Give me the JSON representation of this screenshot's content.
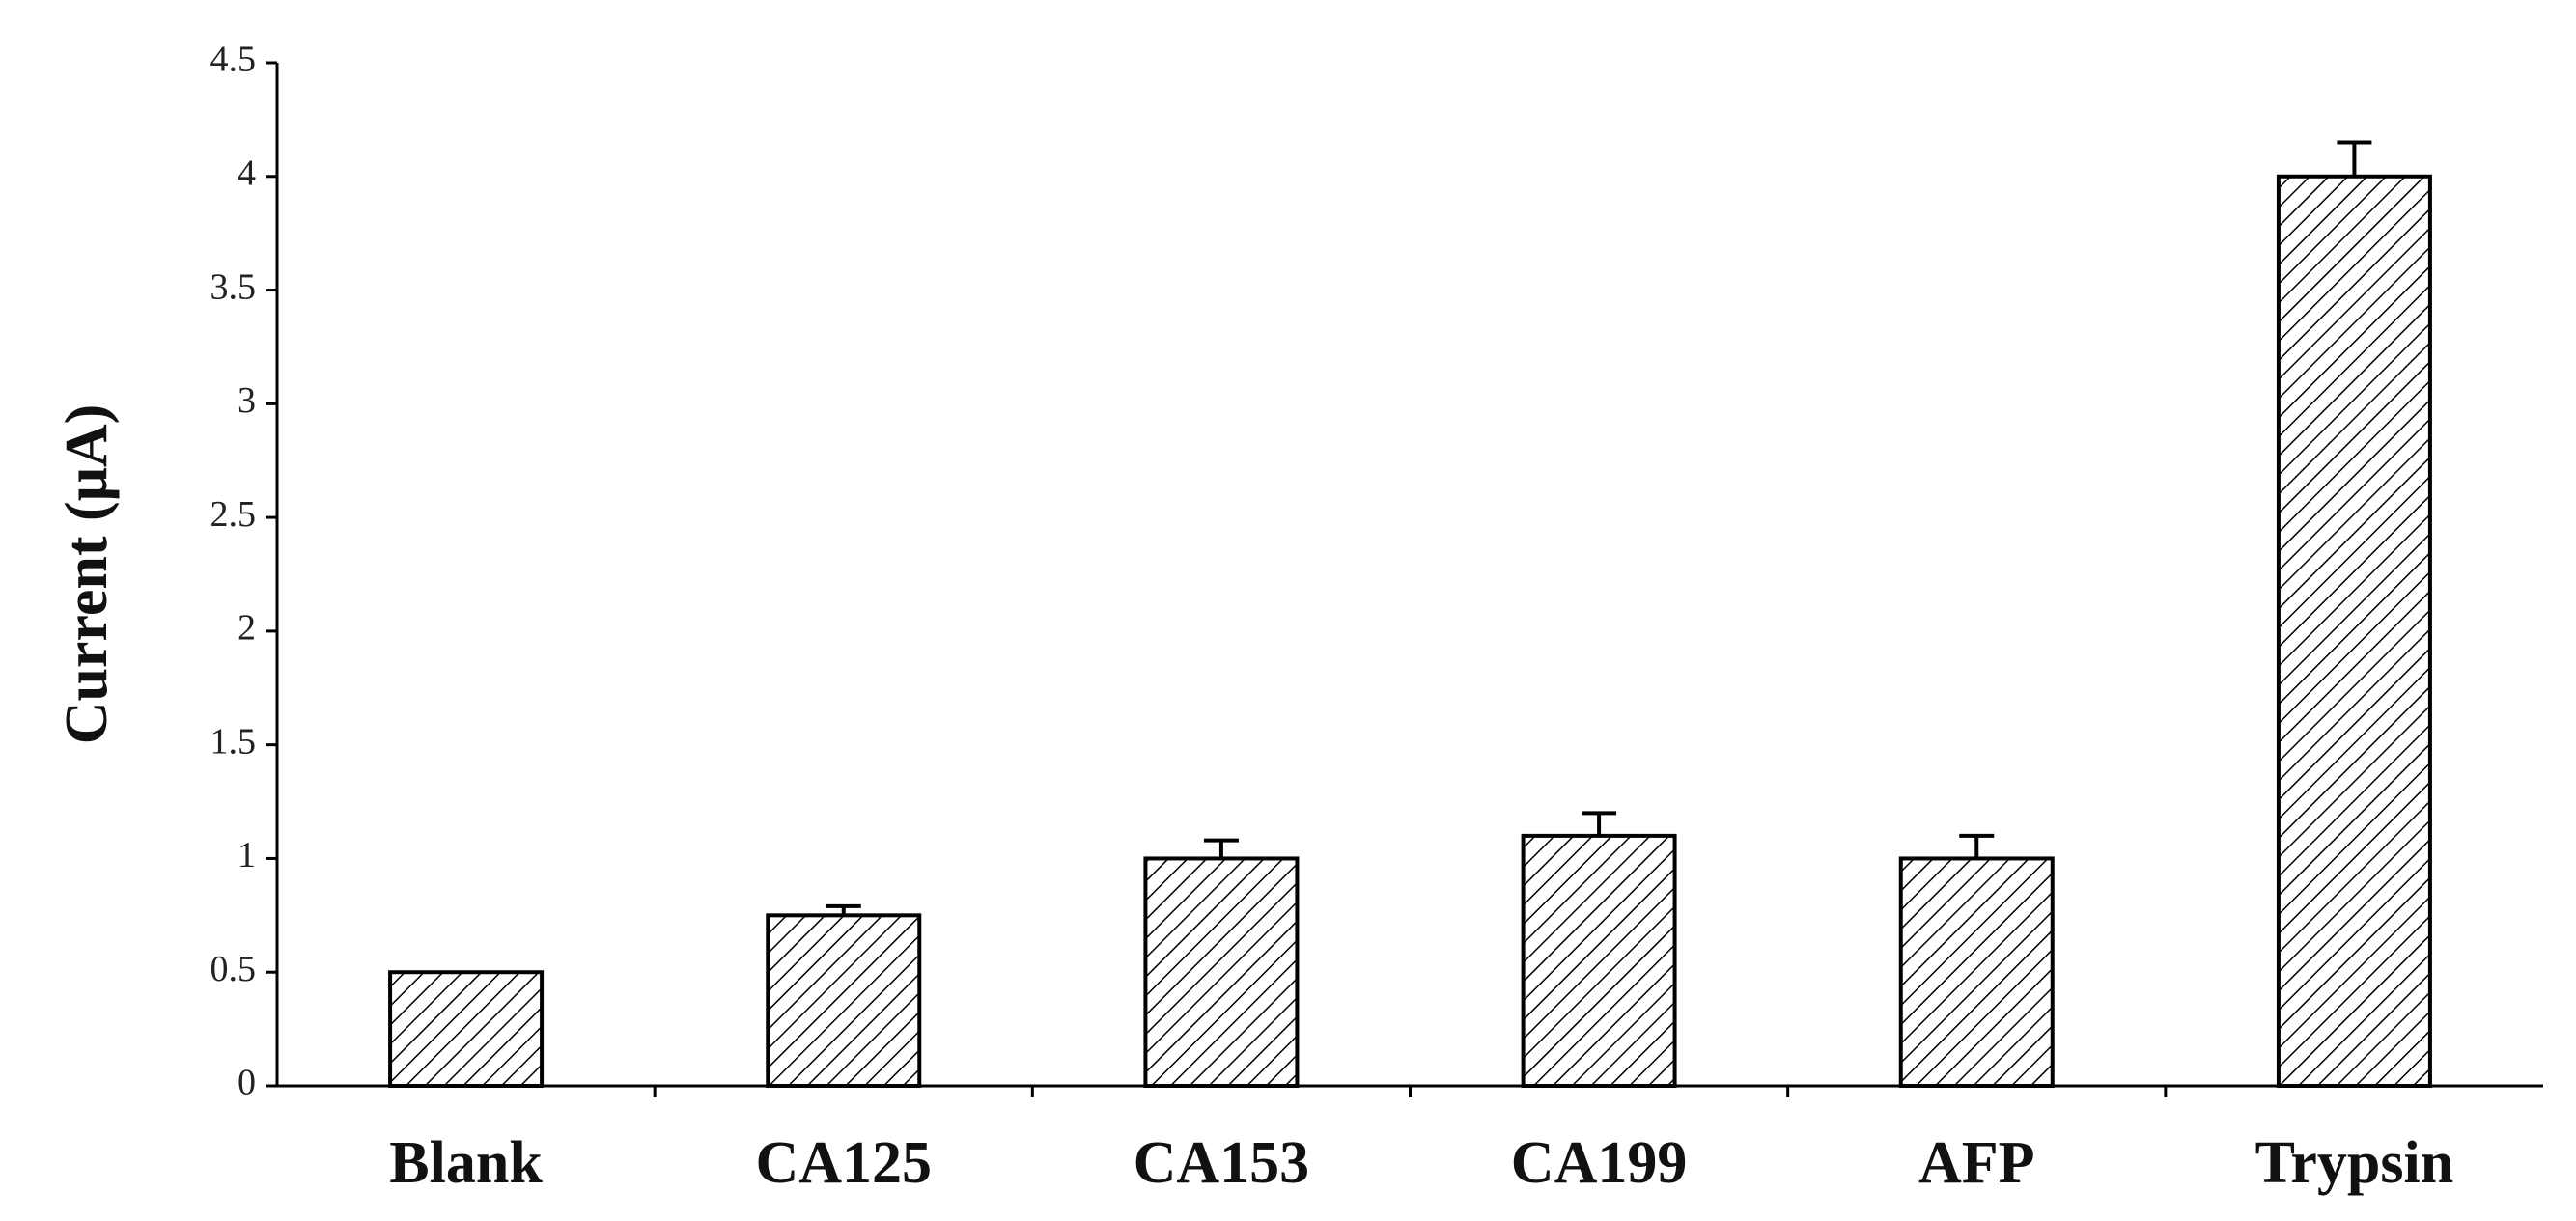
{
  "chart_data": {
    "type": "bar",
    "y_label": "Current (μA)",
    "categories": [
      "Blank",
      "CA125",
      "CA153",
      "CA199",
      "AFP",
      "Trypsin"
    ],
    "values": [
      0.5,
      0.75,
      1.0,
      1.1,
      1.0,
      4.0
    ],
    "errors": [
      null,
      0.04,
      0.08,
      0.1,
      0.1,
      0.15
    ],
    "color": "#000000",
    "ylim": [
      0,
      4.5
    ],
    "yticks": [
      0,
      0.5,
      1,
      1.5,
      2,
      2.5,
      3,
      3.5,
      4,
      4.5
    ]
  }
}
